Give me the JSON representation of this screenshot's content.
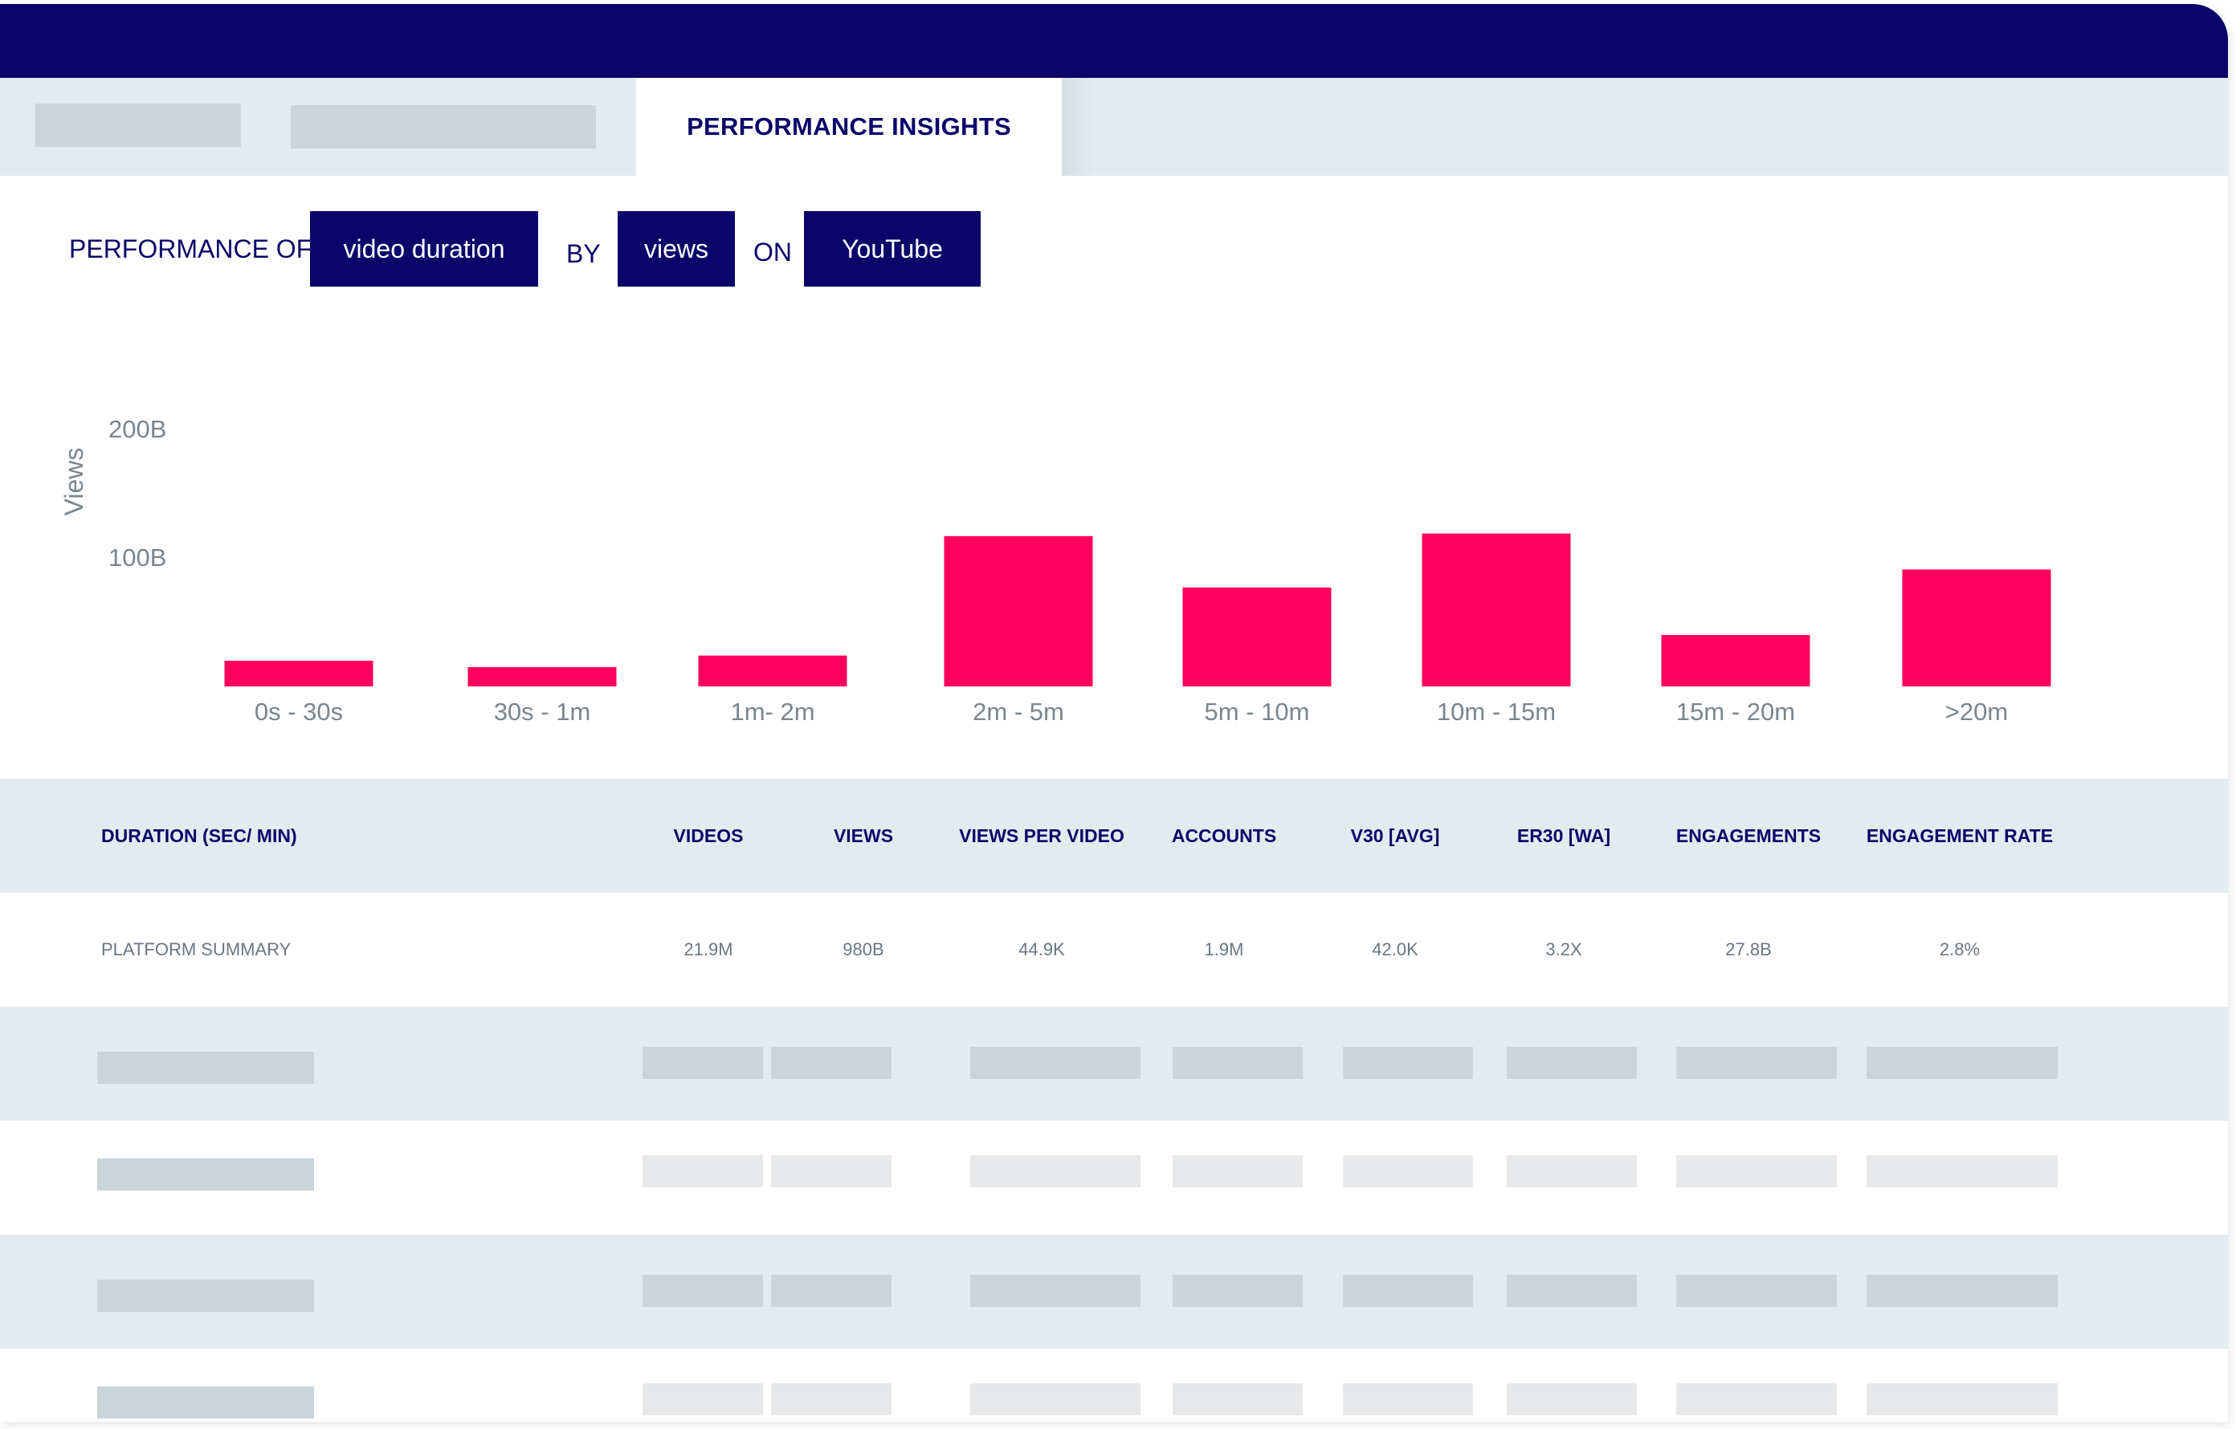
{
  "tabs": {
    "active_label": "PERFORMANCE INSIGHTS"
  },
  "filters": {
    "performance_of_label": "PERFORMANCE OF",
    "metric_chip": "video duration",
    "by_label": "BY",
    "by_chip": "views",
    "on_label": "ON",
    "platform_chip": "YouTube"
  },
  "colors": {
    "navy": "#0b0469",
    "bar": "#ff005c",
    "panel": "#e2ecef",
    "placeholder": "#c9d5da",
    "placeholder_light": "#e6e8ea",
    "axis_text": "#7a858c"
  },
  "chart_data": {
    "type": "bar",
    "ylabel": "Views",
    "yticks": [
      "100B",
      "200B"
    ],
    "ytick_values": [
      100,
      200
    ],
    "ylim": [
      0,
      250
    ],
    "grid": false,
    "categories": [
      "0s - 30s",
      "30s - 1m",
      "1m- 2m",
      "2m - 5m",
      "5m - 10m",
      "10m - 15m",
      "15m - 20m",
      ">20m"
    ],
    "values": [
      20,
      15,
      24,
      117,
      77,
      119,
      40,
      91
    ]
  },
  "table": {
    "headers": [
      "DURATION (SEC/ MIN)",
      "VIDEOS",
      "VIEWS",
      "VIEWS PER VIDEO",
      "ACCOUNTS",
      "V30 [AVG]",
      "ER30 [WA]",
      "ENGAGEMENTS",
      "ENGAGEMENT RATE"
    ],
    "summary": [
      "PLATFORM SUMMARY",
      "21.9M",
      "980B",
      "44.9K",
      "1.9M",
      "42.0K",
      "3.2X",
      "27.8B",
      "2.8%"
    ]
  }
}
